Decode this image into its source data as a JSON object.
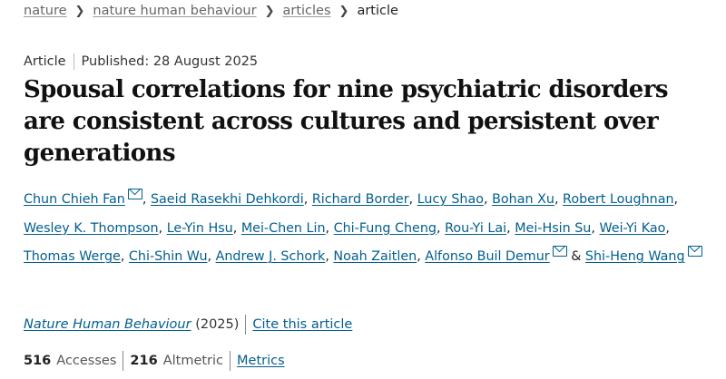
{
  "breadcrumb": {
    "items": [
      "nature",
      "nature human behaviour",
      "articles"
    ],
    "current": "article"
  },
  "meta": {
    "type": "Article",
    "published": "Published: 28 August 2025"
  },
  "title": "Spousal correlations for nine psychiatric disorders are consistent across cultures and persistent over generations",
  "authors": [
    {
      "name": "Chun Chieh Fan",
      "mail": true
    },
    {
      "name": "Saeid Rasekhi Dehkordi"
    },
    {
      "name": "Richard Border"
    },
    {
      "name": "Lucy Shao"
    },
    {
      "name": "Bohan Xu"
    },
    {
      "name": "Robert Loughnan"
    },
    {
      "name": "Wesley K. Thompson"
    },
    {
      "name": "Le-Yin Hsu"
    },
    {
      "name": "Mei-Chen Lin"
    },
    {
      "name": "Chi-Fung Cheng"
    },
    {
      "name": "Rou-Yi Lai"
    },
    {
      "name": "Mei-Hsin Su"
    },
    {
      "name": "Wei-Yi Kao"
    },
    {
      "name": "Thomas Werge"
    },
    {
      "name": "Chi-Shin Wu"
    },
    {
      "name": "Andrew J. Schork"
    },
    {
      "name": "Noah Zaitlen"
    },
    {
      "name": "Alfonso Buil Demur",
      "mail": true
    },
    {
      "name": "Shi-Heng Wang",
      "mail": true
    }
  ],
  "authors_sep": ", ",
  "authors_and": " & ",
  "journal": {
    "name": "Nature Human Behaviour",
    "year": "(2025)",
    "cite": "Cite this article"
  },
  "stats": {
    "accesses_count": "516",
    "accesses_label": "Accesses",
    "altmetric_count": "216",
    "altmetric_label": "Altmetric",
    "metrics_link": "Metrics"
  },
  "colors": {
    "link": "#025e8d"
  }
}
